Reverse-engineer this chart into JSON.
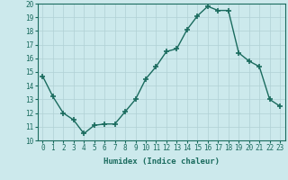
{
  "x": [
    0,
    1,
    2,
    3,
    4,
    5,
    6,
    7,
    8,
    9,
    10,
    11,
    12,
    13,
    14,
    15,
    16,
    17,
    18,
    19,
    20,
    21,
    22,
    23
  ],
  "y": [
    14.7,
    13.2,
    12.0,
    11.5,
    10.5,
    11.1,
    11.2,
    11.2,
    12.1,
    13.0,
    14.5,
    15.4,
    16.5,
    16.7,
    18.1,
    19.1,
    19.8,
    19.5,
    19.5,
    16.4,
    15.8,
    15.4,
    13.0,
    12.5
  ],
  "line_color": "#1a6b5e",
  "marker": "+",
  "marker_size": 4,
  "marker_lw": 1.2,
  "bg_color": "#cce9ec",
  "grid_color": "#b0d0d4",
  "xlabel": "Humidex (Indice chaleur)",
  "ylim": [
    10,
    20
  ],
  "xlim_min": -0.5,
  "xlim_max": 23.5,
  "yticks": [
    10,
    11,
    12,
    13,
    14,
    15,
    16,
    17,
    18,
    19,
    20
  ],
  "xticks": [
    0,
    1,
    2,
    3,
    4,
    5,
    6,
    7,
    8,
    9,
    10,
    11,
    12,
    13,
    14,
    15,
    16,
    17,
    18,
    19,
    20,
    21,
    22,
    23
  ],
  "xtick_labels": [
    "0",
    "1",
    "2",
    "3",
    "4",
    "5",
    "6",
    "7",
    "8",
    "9",
    "10",
    "11",
    "12",
    "13",
    "14",
    "15",
    "16",
    "17",
    "18",
    "19",
    "20",
    "21",
    "22",
    "23"
  ],
  "tick_fontsize": 5.5,
  "label_fontsize": 6.5,
  "line_width": 1.0
}
